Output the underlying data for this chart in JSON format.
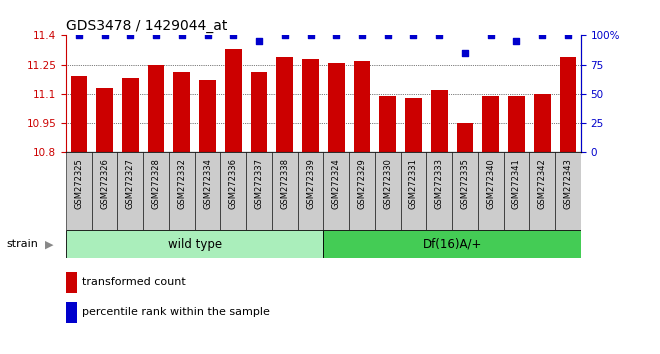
{
  "title": "GDS3478 / 1429044_at",
  "categories": [
    "GSM272325",
    "GSM272326",
    "GSM272327",
    "GSM272328",
    "GSM272332",
    "GSM272334",
    "GSM272336",
    "GSM272337",
    "GSM272338",
    "GSM272339",
    "GSM272324",
    "GSM272329",
    "GSM272330",
    "GSM272331",
    "GSM272333",
    "GSM272335",
    "GSM272340",
    "GSM272341",
    "GSM272342",
    "GSM272343"
  ],
  "bar_values": [
    11.19,
    11.13,
    11.18,
    11.25,
    11.21,
    11.17,
    11.33,
    11.21,
    11.29,
    11.28,
    11.26,
    11.27,
    11.09,
    11.08,
    11.12,
    10.95,
    11.09,
    11.09,
    11.1,
    11.29
  ],
  "percentile_values": [
    100,
    100,
    100,
    100,
    100,
    100,
    100,
    95,
    100,
    100,
    100,
    100,
    100,
    100,
    100,
    85,
    100,
    95,
    100,
    100
  ],
  "bar_color": "#cc0000",
  "percentile_color": "#0000cc",
  "ymin": 10.8,
  "ymax": 11.4,
  "y_ticks": [
    10.8,
    10.95,
    11.1,
    11.25,
    11.4
  ],
  "y_tick_labels": [
    "10.8",
    "10.95",
    "11.1",
    "11.25",
    "11.4"
  ],
  "right_y_ticks": [
    0,
    25,
    50,
    75,
    100
  ],
  "right_y_tick_labels": [
    "0",
    "25",
    "50",
    "75",
    "100%"
  ],
  "wild_type_count": 10,
  "df16_count": 10,
  "wild_type_label": "wild type",
  "df16_label": "Df(16)A/+",
  "strain_label": "strain",
  "legend1": "transformed count",
  "legend2": "percentile rank within the sample",
  "bar_color_legend": "#cc0000",
  "percentile_color_legend": "#0000cc",
  "wild_type_bg": "#aaeebb",
  "df16_bg": "#44cc55",
  "xticklabel_bg": "#cccccc"
}
